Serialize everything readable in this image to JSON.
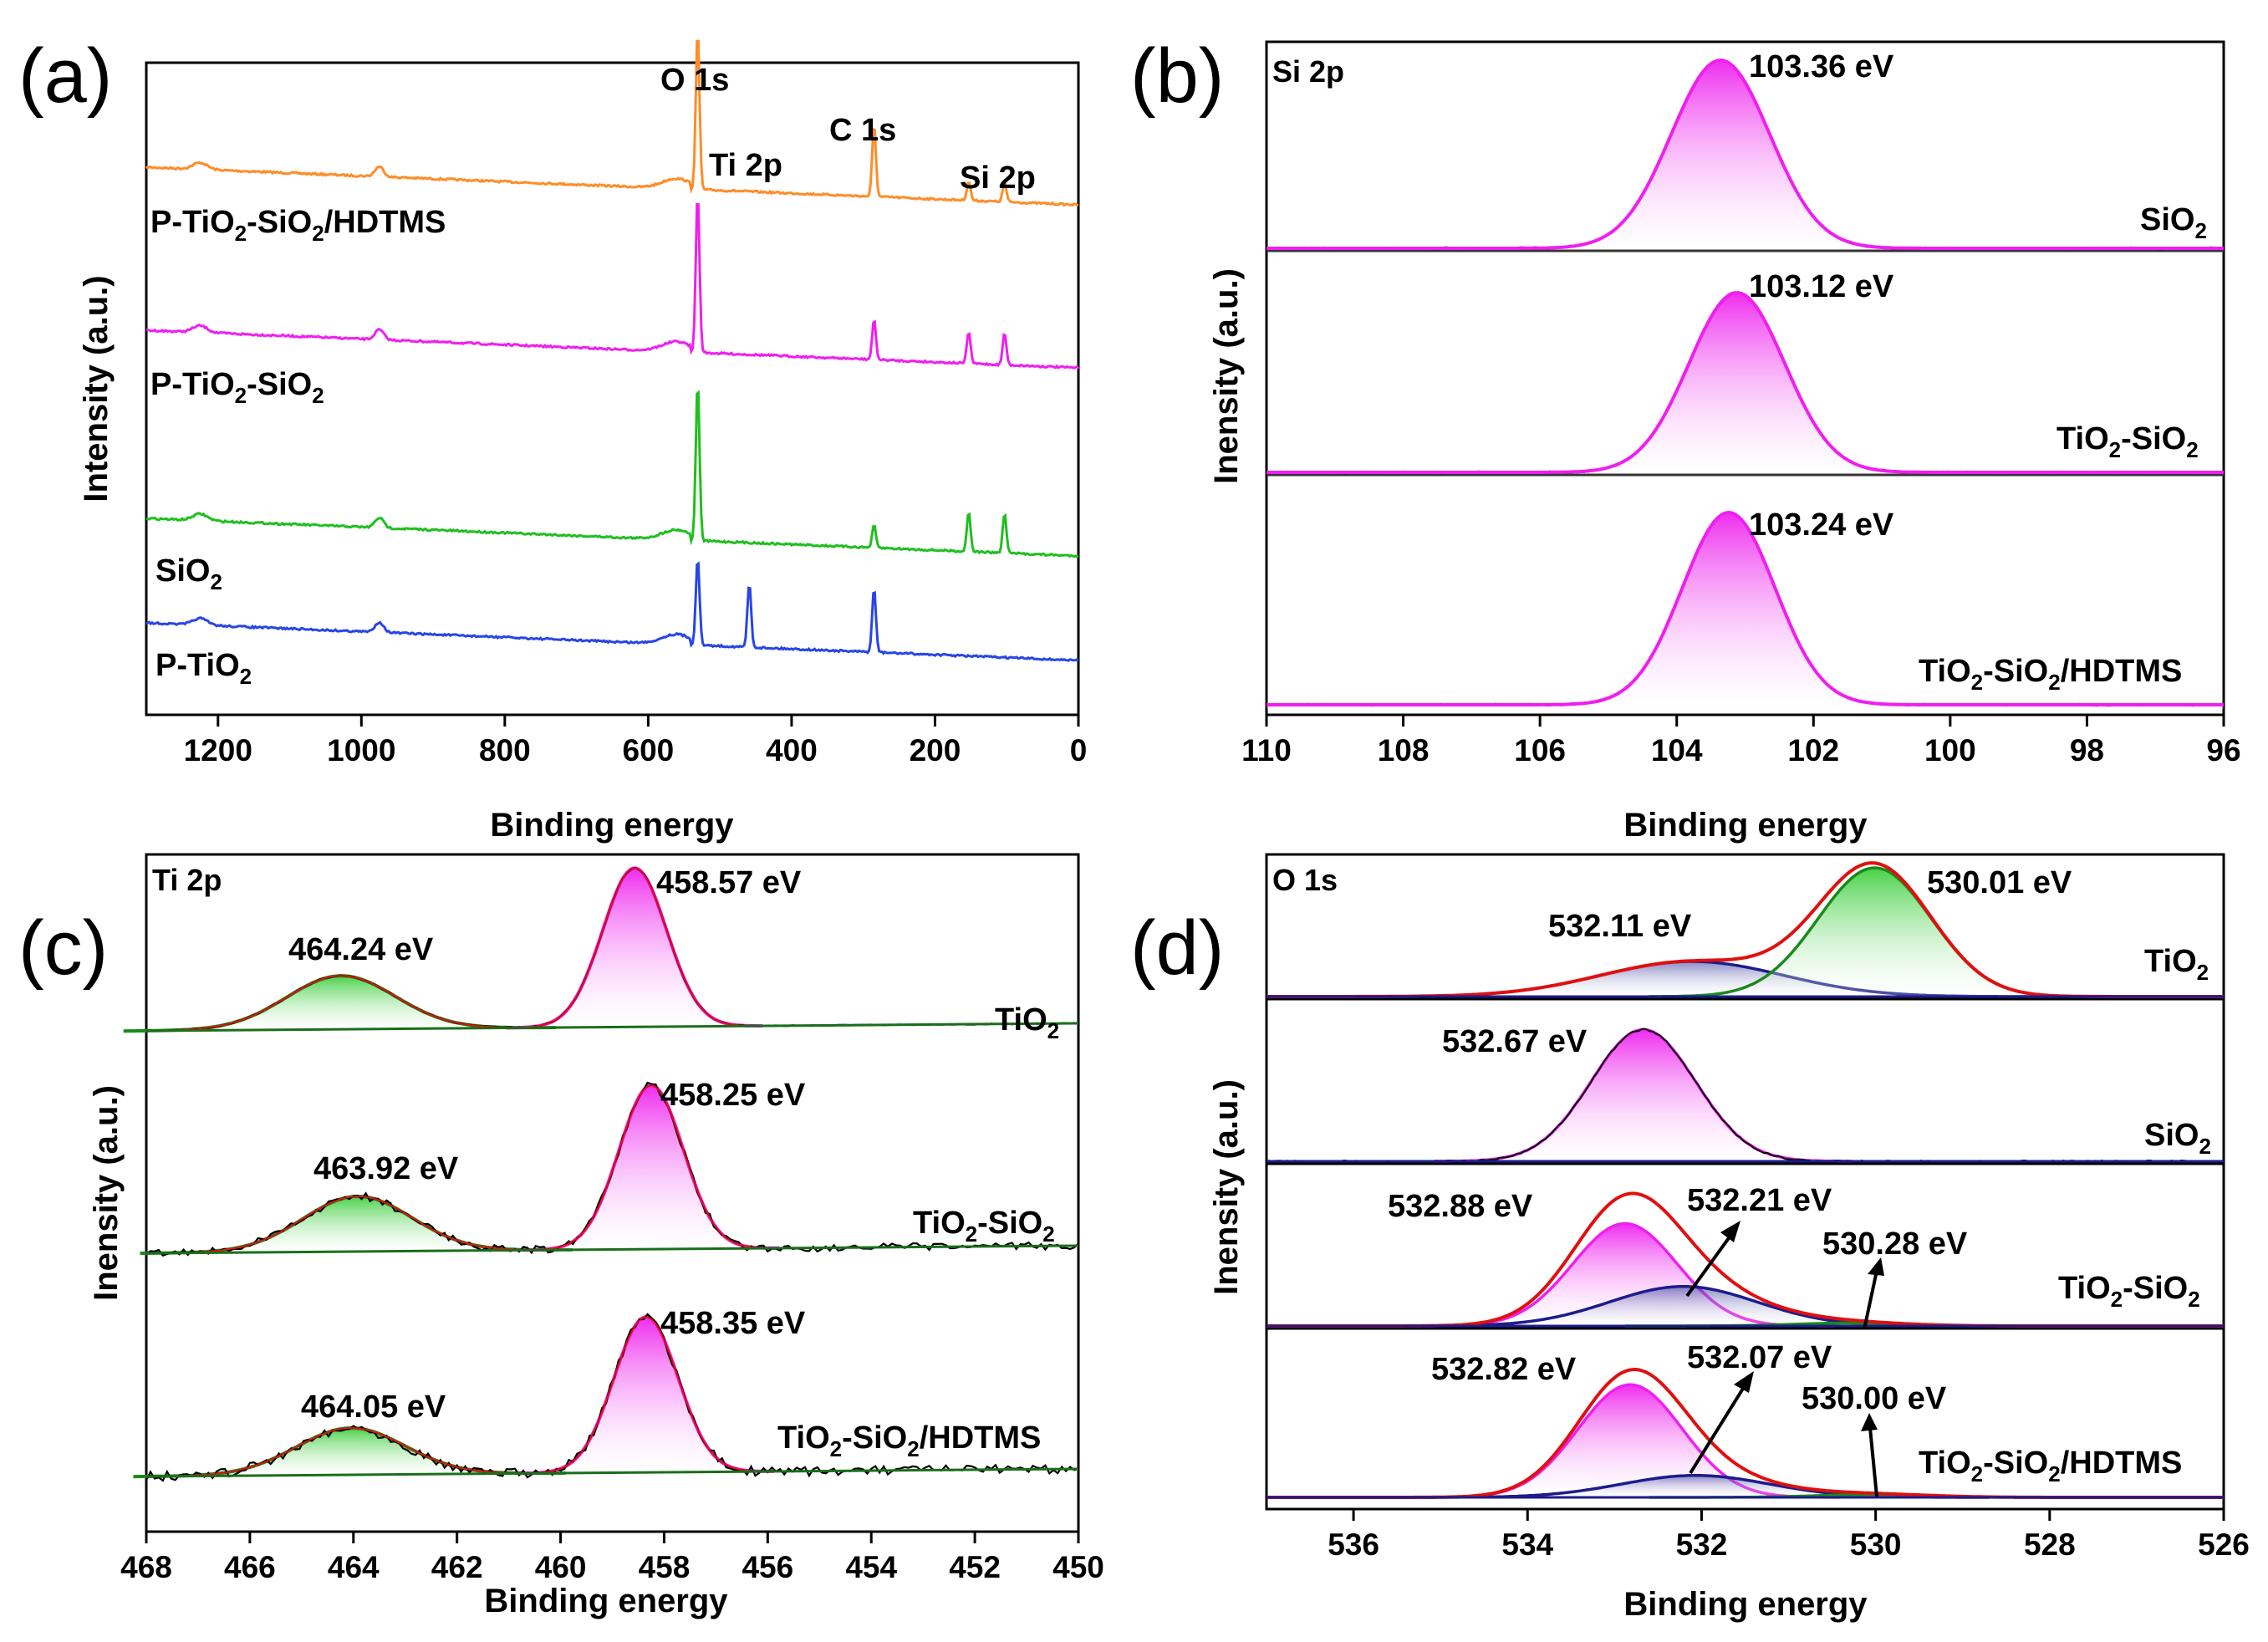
{
  "chart_data": [
    {
      "panel": "(a)",
      "type": "line",
      "title": "",
      "xlabel": "Binding energy",
      "ylabel": "Intensity (a.u.)",
      "xlim": [
        1300,
        0
      ],
      "x_ticks": [
        1200,
        1000,
        800,
        600,
        400,
        200,
        0
      ],
      "peak_labels": [
        "O 1s",
        "Ti 2p",
        "C 1s",
        "Si 2p"
      ],
      "series": [
        {
          "name": "P-TiO2-SiO2/HDTMS",
          "label": "P-TiO",
          "color": "#ff8c28",
          "offset": 3,
          "peaks": [
            {
              "x": 531,
              "h": 1.0
            },
            {
              "x": 285,
              "h": 0.45
            },
            {
              "x": 153,
              "h": 0.12
            },
            {
              "x": 103,
              "h": 0.12
            }
          ]
        },
        {
          "name": "P-TiO2-SiO2",
          "label": "P-TiO",
          "color": "#f01ef0",
          "offset": 2,
          "peaks": [
            {
              "x": 531,
              "h": 1.0
            },
            {
              "x": 285,
              "h": 0.25
            },
            {
              "x": 153,
              "h": 0.2
            },
            {
              "x": 103,
              "h": 0.2
            }
          ]
        },
        {
          "name": "SiO2",
          "label": "SiO",
          "color": "#1fbf1f",
          "offset": 1,
          "peaks": [
            {
              "x": 531,
              "h": 1.0
            },
            {
              "x": 285,
              "h": 0.14
            },
            {
              "x": 153,
              "h": 0.25
            },
            {
              "x": 103,
              "h": 0.25
            }
          ]
        },
        {
          "name": "P-TiO2",
          "label": "P-TiO",
          "color": "#2845e8",
          "offset": 0,
          "peaks": [
            {
              "x": 531,
              "h": 0.55
            },
            {
              "x": 459,
              "h": 0.4
            },
            {
              "x": 285,
              "h": 0.4
            }
          ]
        }
      ]
    },
    {
      "panel": "(b)",
      "type": "line",
      "corner_label": "Si 2p",
      "xlabel": "Binding energy",
      "ylabel": "Inensity (a.u.)",
      "xlim": [
        110,
        96
      ],
      "x_ticks": [
        110,
        108,
        106,
        104,
        102,
        100,
        98,
        96
      ],
      "series": [
        {
          "name": "SiO2",
          "label": "SiO",
          "peak": 103.36,
          "peak_label": "103.36 eV",
          "sigma": 0.72
        },
        {
          "name": "TiO2-SiO2",
          "label": "TiO",
          "peak": 103.12,
          "peak_label": "103.12 eV",
          "sigma": 0.7
        },
        {
          "name": "TiO2-SiO2/HDTMS",
          "label": "TiO",
          "peak": 103.24,
          "peak_label": "103.24 eV",
          "sigma": 0.68
        }
      ]
    },
    {
      "panel": "(c)",
      "type": "line",
      "corner_label": "Ti 2p",
      "xlabel": "Binding energy",
      "ylabel": "Inensity (a.u.)",
      "xlim": [
        468,
        450
      ],
      "x_ticks": [
        468,
        466,
        464,
        462,
        460,
        458,
        456,
        454,
        452,
        450
      ],
      "series": [
        {
          "name": "TiO2",
          "label": "TiO",
          "peaks": [
            {
              "x": 464.24,
              "label": "464.24 eV",
              "color": "green",
              "h": 0.32
            },
            {
              "x": 458.57,
              "label": "458.57 eV",
              "color": "magenta",
              "h": 0.95
            }
          ]
        },
        {
          "name": "TiO2-SiO2",
          "label": "TiO",
          "peaks": [
            {
              "x": 463.92,
              "label": "463.92 eV",
              "color": "green",
              "h": 0.33
            },
            {
              "x": 458.25,
              "label": "458.25 eV",
              "color": "magenta",
              "h": 0.98
            }
          ]
        },
        {
          "name": "TiO2-SiO2/HDTMS",
          "label": "TiO",
          "peaks": [
            {
              "x": 464.05,
              "label": "464.05 eV",
              "color": "green",
              "h": 0.28
            },
            {
              "x": 458.35,
              "label": "458.35 eV",
              "color": "magenta",
              "h": 0.93
            }
          ]
        }
      ]
    },
    {
      "panel": "(d)",
      "type": "line",
      "corner_label": "O 1s",
      "xlabel": "Binding energy",
      "ylabel": "Inensity (a.u.)",
      "xlim": [
        537,
        526
      ],
      "x_ticks": [
        536,
        534,
        532,
        530,
        528,
        526
      ],
      "series": [
        {
          "name": "TiO2",
          "label": "TiO",
          "peaks": [
            {
              "x": 532.11,
              "label": "532.11 eV",
              "color": "navy",
              "h": 0.24
            },
            {
              "x": 530.01,
              "label": "530.01 eV",
              "color": "green",
              "h": 0.88
            }
          ]
        },
        {
          "name": "SiO2",
          "label": "SiO",
          "peaks": [
            {
              "x": 532.67,
              "label": "532.67 eV",
              "color": "magenta",
              "h": 0.9
            }
          ]
        },
        {
          "name": "TiO2-SiO2",
          "label": "TiO",
          "peaks": [
            {
              "x": 532.88,
              "label": "532.88 eV",
              "color": "magenta",
              "h": 0.7
            },
            {
              "x": 532.21,
              "label": "532.21 eV",
              "color": "navy",
              "h": 0.27
            },
            {
              "x": 530.28,
              "label": "530.28 eV",
              "color": "green",
              "h": 0.02
            }
          ]
        },
        {
          "name": "TiO2-SiO2/HDTMS",
          "label": "TiO",
          "peaks": [
            {
              "x": 532.82,
              "label": "532.82 eV",
              "color": "magenta",
              "h": 0.77
            },
            {
              "x": 532.07,
              "label": "532.07 eV",
              "color": "navy",
              "h": 0.15
            },
            {
              "x": 530.0,
              "label": "530.00 eV",
              "color": "green",
              "h": 0.02
            }
          ]
        }
      ]
    }
  ],
  "panel_labels": [
    "(a)",
    "(b)",
    "(c)",
    "(d)"
  ],
  "subscripts": {
    "two": "2"
  },
  "label_suffixes": {
    "slash_hdtms": "/HDTMS",
    "dash_sio": "-SiO"
  },
  "colors": {
    "magenta": "#f01ef0",
    "green": "#1fbf1f",
    "navy": "#1c1c8c",
    "red": "#e01010",
    "black": "#000000"
  }
}
